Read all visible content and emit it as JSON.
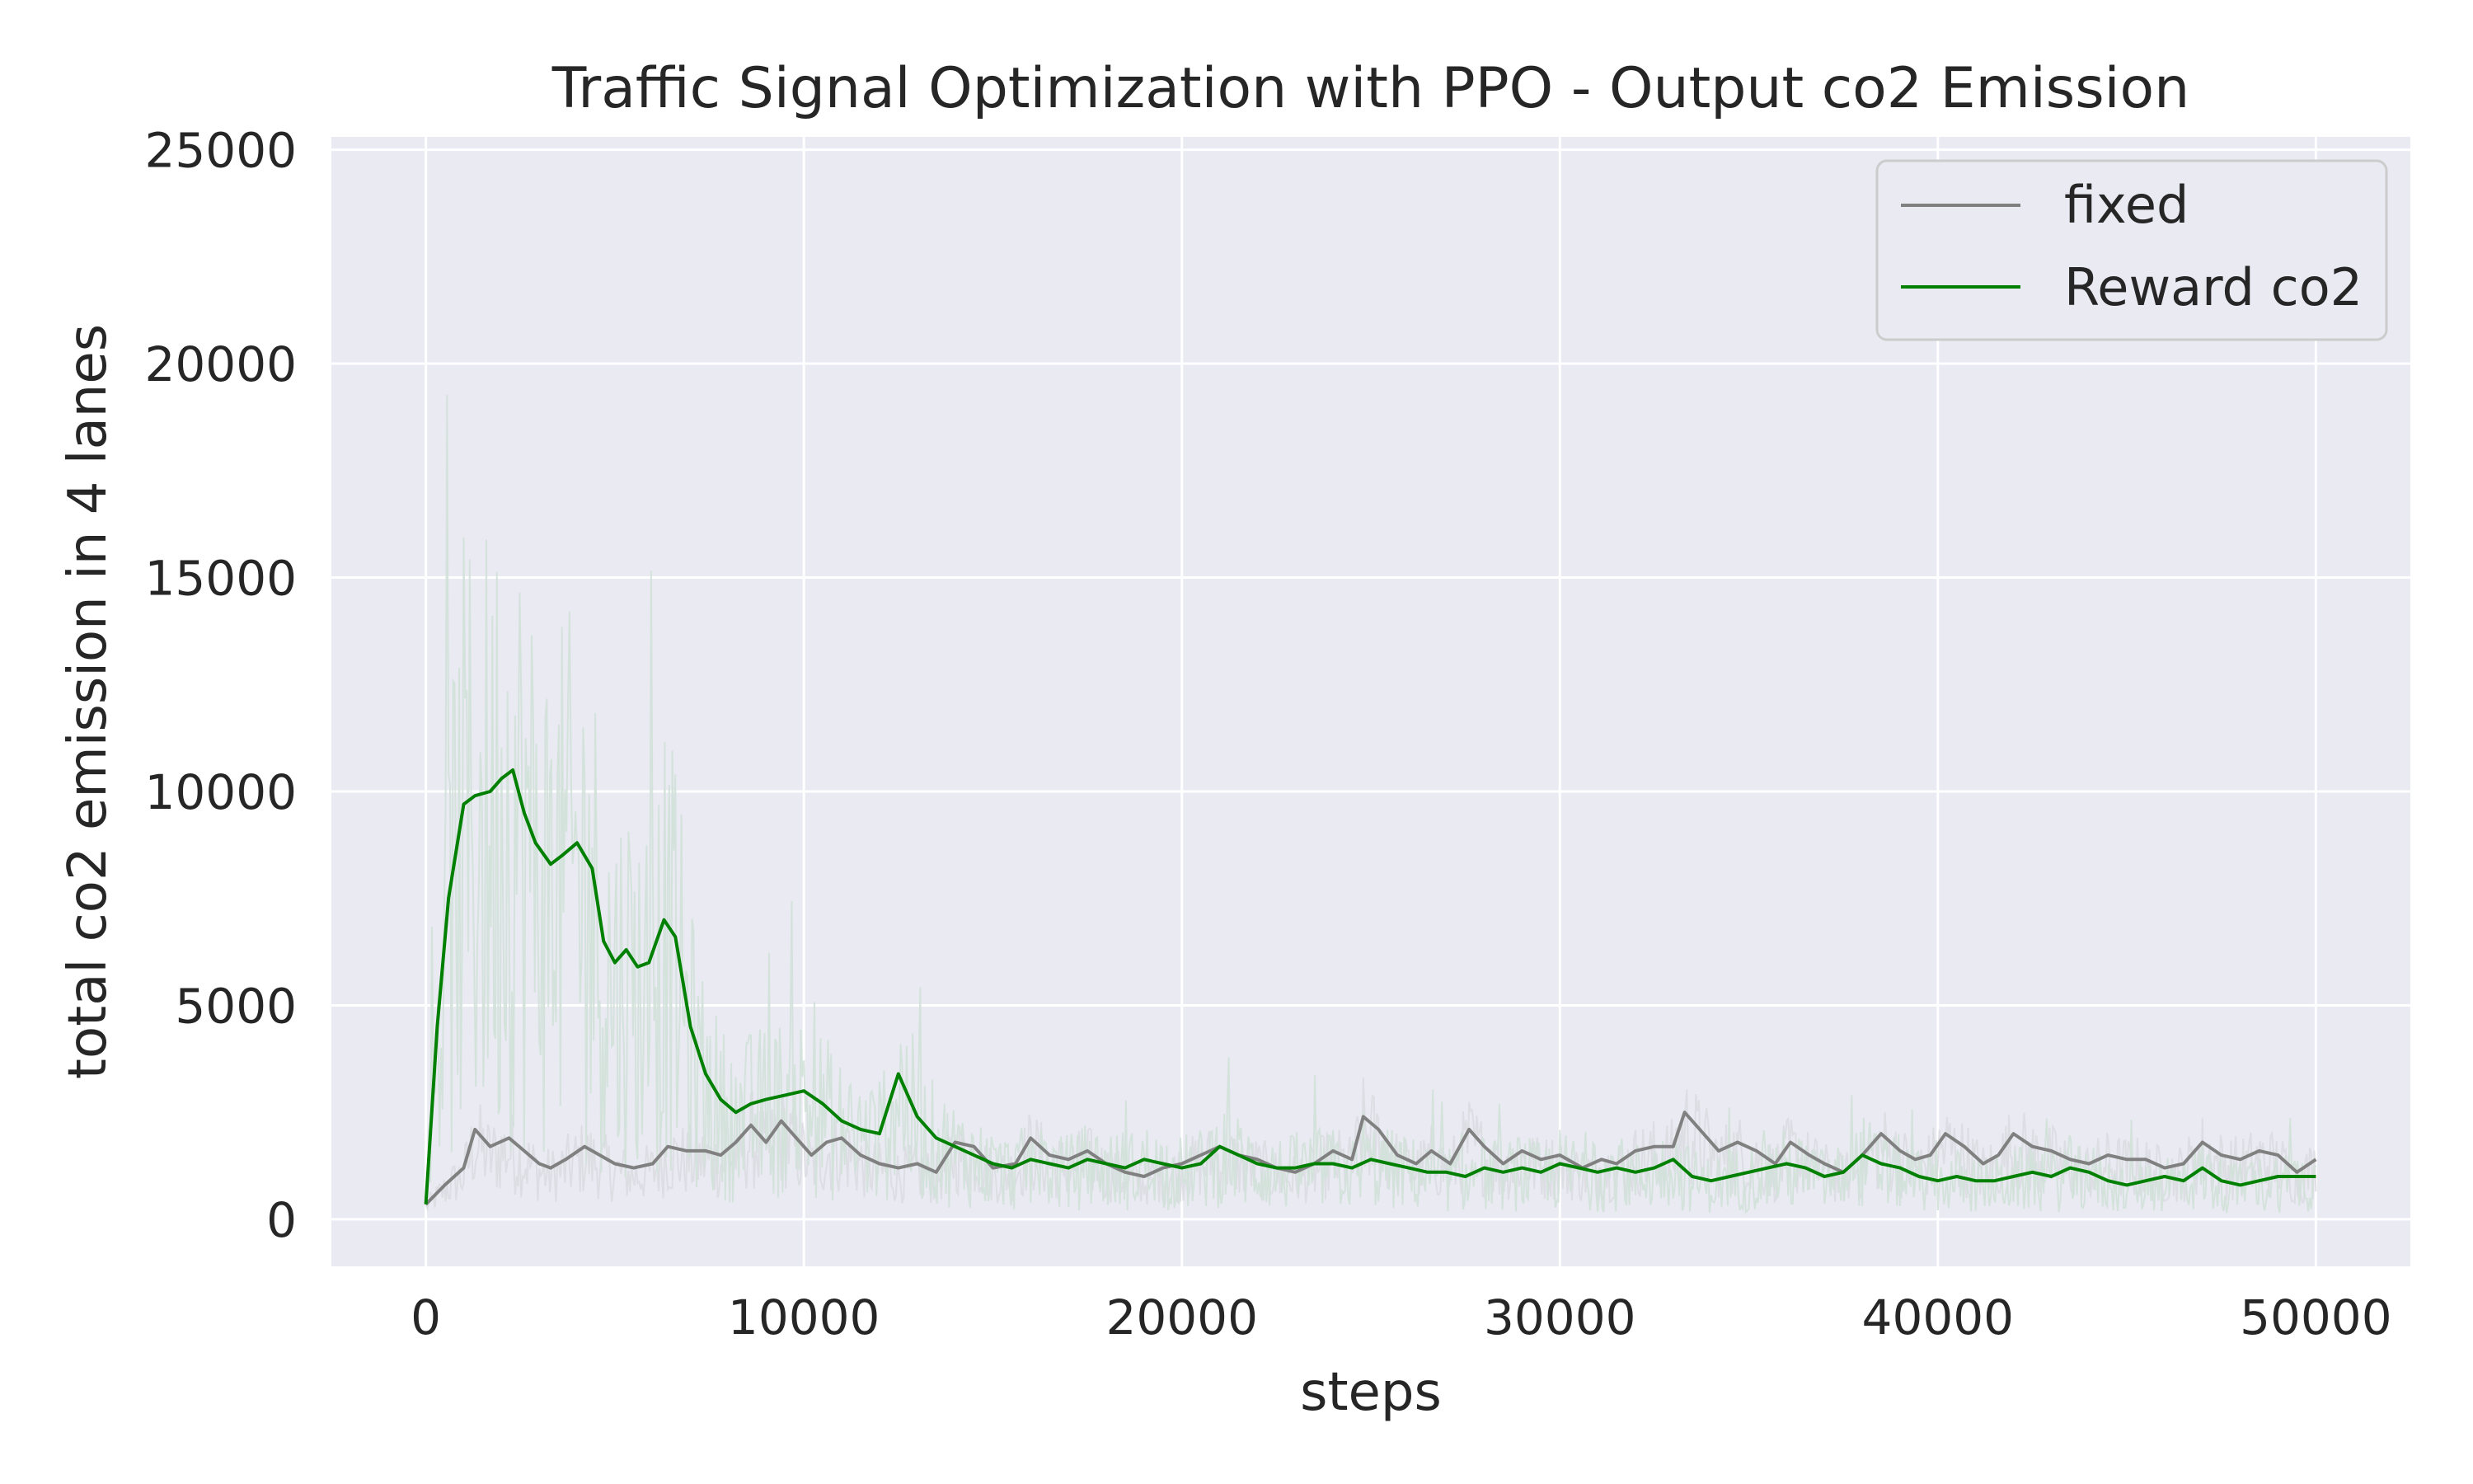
{
  "chart_data": {
    "type": "line",
    "title": "Traffic Signal Optimization with PPO - Output co2 Emission",
    "xlabel": "steps",
    "ylabel": "total co2 emission in 4 lanes",
    "xlim": [
      -2500,
      52500
    ],
    "ylim": [
      -1100,
      25300
    ],
    "xticks": [
      0,
      10000,
      20000,
      30000,
      40000,
      50000
    ],
    "yticks": [
      0,
      5000,
      10000,
      15000,
      20000,
      25000
    ],
    "grid": true,
    "legend_position": "top-right",
    "background": "#eaeaf2",
    "series": [
      {
        "name": "fixed",
        "color": "#808080",
        "raw_color": "#dcdce2",
        "x": [
          0,
          500,
          1000,
          1300,
          1700,
          2200,
          2600,
          3000,
          3300,
          3700,
          4200,
          4600,
          5000,
          5500,
          6000,
          6400,
          6900,
          7400,
          7800,
          8200,
          8600,
          9000,
          9400,
          9800,
          10200,
          10600,
          11000,
          11500,
          12000,
          12500,
          13000,
          13500,
          14000,
          14500,
          15000,
          15600,
          16000,
          16500,
          17000,
          17500,
          18000,
          18500,
          19000,
          19500,
          20000,
          20500,
          21000,
          21500,
          22000,
          22500,
          23000,
          23500,
          24000,
          24500,
          24800,
          25200,
          25700,
          26200,
          26600,
          27100,
          27600,
          28000,
          28500,
          29000,
          29500,
          30000,
          30600,
          31100,
          31500,
          32000,
          32500,
          33000,
          33300,
          33800,
          34200,
          34700,
          35200,
          35700,
          36100,
          36600,
          37000,
          37500,
          38000,
          38500,
          39000,
          39400,
          39800,
          40200,
          40700,
          41200,
          41600,
          42000,
          42500,
          43000,
          43500,
          44000,
          44500,
          45000,
          45500,
          46000,
          46500,
          47000,
          47500,
          48000,
          48500,
          49000,
          49500,
          50000
        ],
        "y": [
          350,
          800,
          1200,
          2100,
          1700,
          1900,
          1600,
          1300,
          1200,
          1400,
          1700,
          1500,
          1300,
          1200,
          1300,
          1700,
          1600,
          1600,
          1500,
          1800,
          2200,
          1800,
          2300,
          1900,
          1500,
          1800,
          1900,
          1500,
          1300,
          1200,
          1300,
          1100,
          1800,
          1700,
          1200,
          1300,
          1900,
          1500,
          1400,
          1600,
          1300,
          1100,
          1000,
          1200,
          1300,
          1500,
          1700,
          1500,
          1400,
          1200,
          1100,
          1300,
          1600,
          1400,
          2400,
          2100,
          1500,
          1300,
          1600,
          1300,
          2100,
          1700,
          1300,
          1600,
          1400,
          1500,
          1200,
          1400,
          1300,
          1600,
          1700,
          1700,
          2500,
          2000,
          1600,
          1800,
          1600,
          1300,
          1800,
          1500,
          1300,
          1100,
          1500,
          2000,
          1600,
          1400,
          1500,
          2000,
          1700,
          1300,
          1500,
          2000,
          1700,
          1600,
          1400,
          1300,
          1500,
          1400,
          1400,
          1200,
          1300,
          1800,
          1500,
          1400,
          1600,
          1500,
          1100,
          1400
        ]
      },
      {
        "name": "Reward co2",
        "color": "#008000",
        "raw_color": "#d2e1d9",
        "x": [
          0,
          300,
          600,
          1000,
          1300,
          1700,
          2000,
          2300,
          2600,
          2900,
          3300,
          3600,
          4000,
          4400,
          4700,
          5000,
          5300,
          5600,
          5900,
          6300,
          6600,
          7000,
          7400,
          7800,
          8200,
          8600,
          9000,
          9500,
          10000,
          10500,
          11000,
          11500,
          12000,
          12500,
          13000,
          13500,
          14000,
          14500,
          15000,
          15500,
          16000,
          16500,
          17000,
          17500,
          18000,
          18500,
          19000,
          19500,
          20000,
          20500,
          21000,
          21500,
          22000,
          22500,
          23000,
          23500,
          24000,
          24500,
          25000,
          25500,
          26000,
          26500,
          27000,
          27500,
          28000,
          28500,
          29000,
          29500,
          30000,
          30500,
          31000,
          31500,
          32000,
          32500,
          33000,
          33500,
          34000,
          34500,
          35000,
          35500,
          36000,
          36500,
          37000,
          37500,
          38000,
          38500,
          39000,
          39500,
          40000,
          40500,
          41000,
          41500,
          42000,
          42500,
          43000,
          43500,
          44000,
          44500,
          45000,
          45500,
          46000,
          46500,
          47000,
          47500,
          48000,
          48500,
          49000,
          49500,
          50000
        ],
        "y": [
          350,
          4500,
          7500,
          9700,
          9900,
          10000,
          10300,
          10500,
          9500,
          8800,
          8300,
          8500,
          8800,
          8200,
          6500,
          6000,
          6300,
          5900,
          6000,
          7000,
          6600,
          4500,
          3400,
          2800,
          2500,
          2700,
          2800,
          2900,
          3000,
          2700,
          2300,
          2100,
          2000,
          3400,
          2400,
          1900,
          1700,
          1500,
          1300,
          1200,
          1400,
          1300,
          1200,
          1400,
          1300,
          1200,
          1400,
          1300,
          1200,
          1300,
          1700,
          1500,
          1300,
          1200,
          1200,
          1300,
          1300,
          1200,
          1400,
          1300,
          1200,
          1100,
          1100,
          1000,
          1200,
          1100,
          1200,
          1100,
          1300,
          1200,
          1100,
          1200,
          1100,
          1200,
          1400,
          1000,
          900,
          1000,
          1100,
          1200,
          1300,
          1200,
          1000,
          1100,
          1500,
          1300,
          1200,
          1000,
          900,
          1000,
          900,
          900,
          1000,
          1100,
          1000,
          1200,
          1100,
          900,
          800,
          900,
          1000,
          900,
          1200,
          900,
          800,
          900,
          1000,
          1000,
          1000
        ]
      }
    ]
  }
}
